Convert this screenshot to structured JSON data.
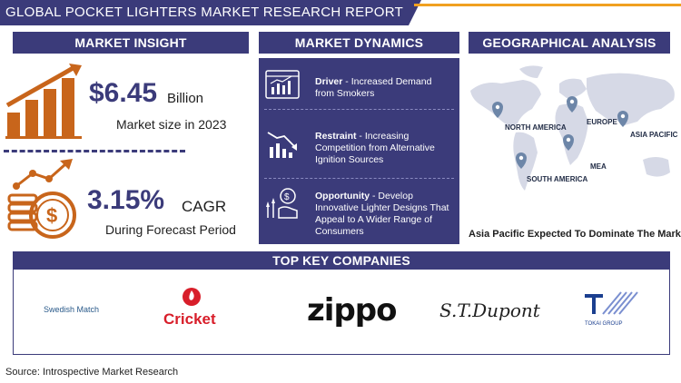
{
  "title": "GLOBAL POCKET LIGHTERS  MARKET RESEARCH REPORT",
  "sections": {
    "insight": "MARKET INSIGHT",
    "dynamics": "MARKET DYNAMICS",
    "geo": "GEOGRAPHICAL ANALYSIS",
    "companies": "TOP KEY COMPANIES"
  },
  "insight": {
    "market_value": "$6.45",
    "market_unit": "Billion",
    "market_caption": "Market size in 2023",
    "cagr_value": "3.15%",
    "cagr_unit": "CAGR",
    "cagr_caption": "During Forecast Period"
  },
  "dynamics": [
    {
      "label": "Driver",
      "text": " - Increased Demand from Smokers",
      "icon": "dashboard-chart-icon"
    },
    {
      "label": "Restraint",
      "text": " - Increasing Competition from Alternative Ignition Sources",
      "icon": "declining-chart-icon"
    },
    {
      "label": "Opportunity",
      "text": " - Develop Innovative Lighter Designs That Appeal to A Wider Range of Consumers",
      "icon": "growth-hand-icon"
    }
  ],
  "geo": {
    "regions": [
      "NORTH AMERICA",
      "EUROPE",
      "ASIA PACIFIC",
      "MEA",
      "SOUTH AMERICA"
    ],
    "caption": "Asia Pacific Expected To Dominate The Market"
  },
  "companies": {
    "swedish": "Swedish Match",
    "cricket": "Cricket",
    "zippo": "zippo",
    "dupont": "S.T.Dupont",
    "tokai": "TOKAI GROUP"
  },
  "colors": {
    "navy": "#3b3b7a",
    "orange": "#c8651b",
    "accent": "#f0a020"
  },
  "source": "Source: Introspective Market Research"
}
